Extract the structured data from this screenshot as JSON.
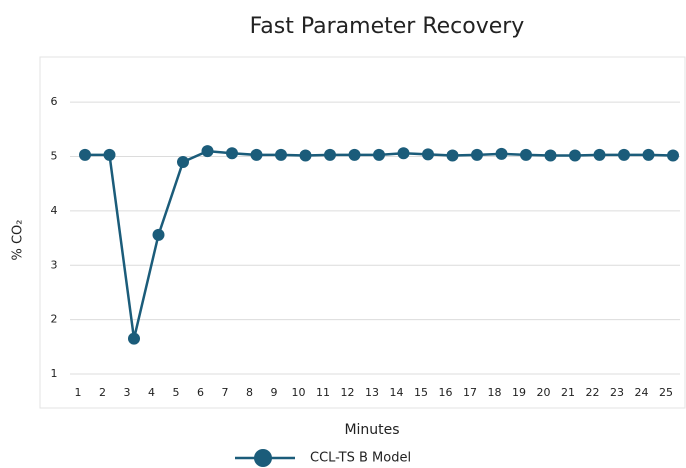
{
  "chart_data": {
    "type": "line",
    "title": "Fast Parameter Recovery",
    "x_label": "Minutes",
    "y_label": "% CO₂",
    "categories": [
      "1",
      "2",
      "3",
      "4",
      "5",
      "6",
      "7",
      "8",
      "9",
      "10",
      "11",
      "12",
      "13",
      "14",
      "15",
      "16",
      "17",
      "18",
      "19",
      "20",
      "21",
      "22",
      "23",
      "24",
      "25"
    ],
    "series": [
      {
        "name": "CCL-TS B Model",
        "color": "#1b5c7a",
        "values": [
          5.03,
          5.03,
          1.65,
          3.56,
          4.9,
          5.1,
          5.06,
          5.03,
          5.03,
          5.02,
          5.03,
          5.03,
          5.03,
          5.06,
          5.04,
          5.02,
          5.03,
          5.05,
          5.03,
          5.02,
          5.02,
          5.03,
          5.03,
          5.03,
          5.02
        ]
      }
    ],
    "ylim": [
      1,
      6.5
    ],
    "yticks": [
      1,
      2,
      3,
      4,
      5,
      6
    ],
    "grid": true
  }
}
